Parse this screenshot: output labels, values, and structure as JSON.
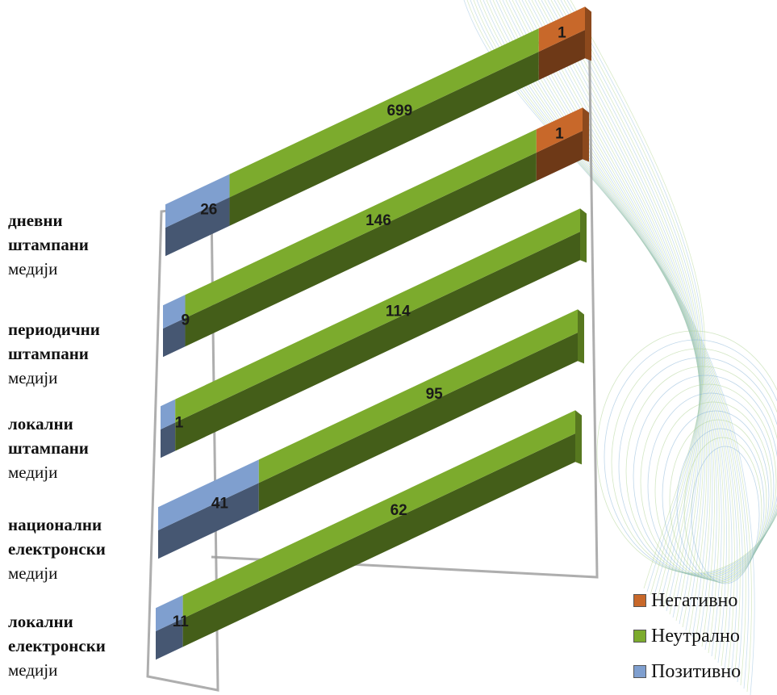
{
  "chart_data": {
    "type": "bar",
    "orientation": "horizontal",
    "stacked": true,
    "categories": [
      "дневни штампани медији",
      "периодични штампани медији",
      "локални штампани медији",
      "национални електронски медији",
      "локални електронски медији"
    ],
    "category_lines": [
      [
        "дневни",
        "штампани",
        "медији"
      ],
      [
        "периодични",
        "штампани",
        "медији"
      ],
      [
        "локални",
        "штампани",
        "медији"
      ],
      [
        "национални",
        "електронски",
        "медији"
      ],
      [
        "локални",
        "електронски",
        "медији"
      ]
    ],
    "series": [
      {
        "name": "Позитивно",
        "color": "#7f9fcf",
        "values": [
          26,
          9,
          1,
          41,
          11
        ]
      },
      {
        "name": "Неутрално",
        "color": "#7cab2d",
        "values": [
          699,
          146,
          114,
          95,
          62
        ]
      },
      {
        "name": "Негативно",
        "color": "#c8682a",
        "values": [
          1,
          1,
          0,
          0,
          0
        ]
      }
    ],
    "legend_position": "bottom-right"
  }
}
